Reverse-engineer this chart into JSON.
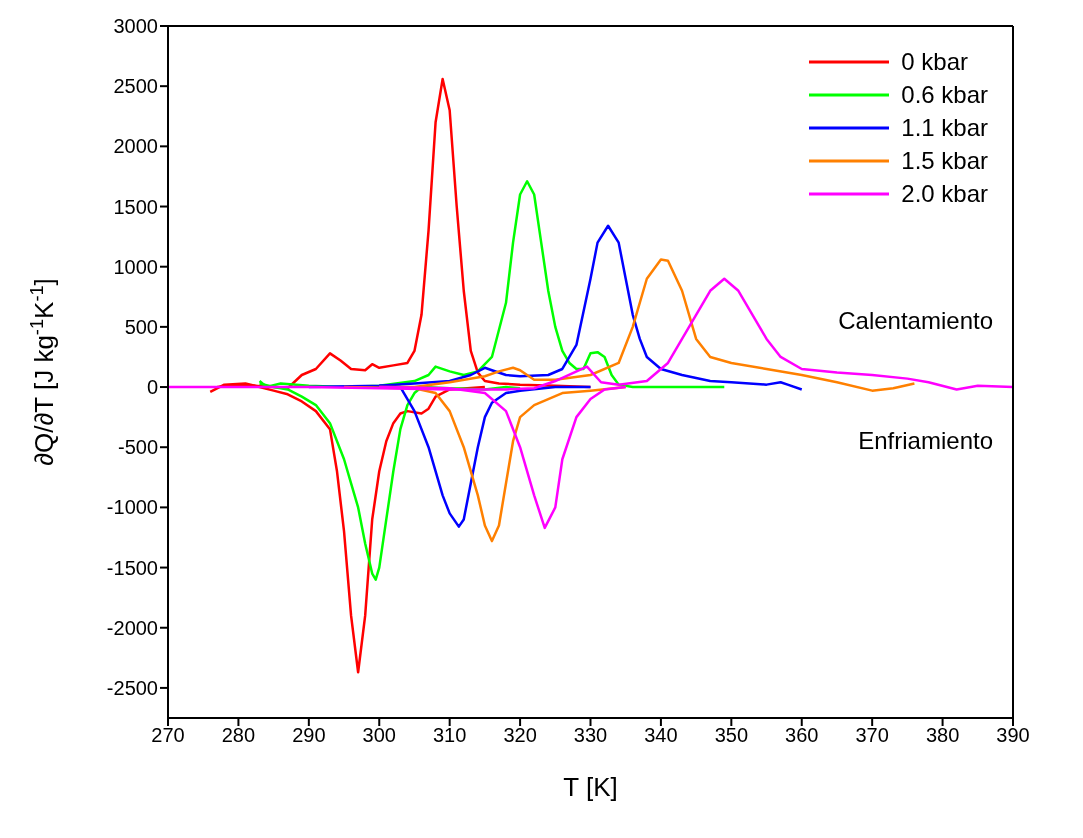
{
  "chart_data": {
    "type": "line",
    "xlabel": "T [K]",
    "ylabel": "∂Q/∂T [J kg$^{-1}$K$^{-1}$]",
    "xlim": [
      270,
      390
    ],
    "xticks": [
      270,
      280,
      290,
      300,
      310,
      320,
      330,
      340,
      350,
      360,
      370,
      380,
      390
    ],
    "ylim": [
      -2750,
      3000
    ],
    "yticks": [
      -2500,
      -2000,
      -1500,
      -1000,
      -500,
      0,
      500,
      1000,
      1500,
      2000,
      2500,
      3000
    ],
    "legend": "top right",
    "marker": "none",
    "line_style": "solid",
    "annotations": [
      "Calentamiento",
      "Enfriamiento"
    ],
    "series": [
      {
        "name": "0 kbar",
        "color": "#ff0000",
        "x": [
          277,
          280,
          285,
          287,
          289,
          291,
          293,
          294.5,
          296,
          298,
          299,
          300,
          302,
          304,
          305,
          306,
          307,
          308,
          309,
          310,
          311,
          312,
          313,
          314,
          315,
          317,
          320,
          325,
          330
        ],
        "values": [
          0,
          20,
          0,
          -10,
          100,
          150,
          280,
          220,
          150,
          140,
          190,
          160,
          180,
          200,
          300,
          600,
          1300,
          2200,
          2560,
          2300,
          1500,
          800,
          300,
          120,
          50,
          30,
          20,
          10,
          0
        ]
      },
      {
        "color": "#ff0000",
        "x": [
          276,
          278,
          281,
          283,
          285,
          287,
          289,
          291,
          293,
          294,
          295,
          296,
          297,
          298,
          299,
          300,
          301,
          302,
          303,
          304,
          306,
          307,
          308,
          310,
          315
        ],
        "values": [
          -40,
          20,
          30,
          0,
          -30,
          -60,
          -120,
          -200,
          -350,
          -700,
          -1200,
          -1900,
          -2370,
          -1900,
          -1100,
          -700,
          -450,
          -300,
          -220,
          -200,
          -220,
          -180,
          -80,
          -20,
          0
        ]
      },
      {
        "name": "0.6 kbar",
        "color": "#00ff00",
        "x": [
          283,
          284,
          286,
          290,
          295,
          300,
          305,
          307,
          308,
          310,
          312,
          314,
          316,
          318,
          319,
          320,
          321,
          322,
          323,
          324,
          325,
          326,
          327,
          328,
          329,
          330,
          331,
          332,
          333,
          334,
          336,
          345,
          349
        ],
        "values": [
          50,
          0,
          30,
          10,
          0,
          10,
          50,
          100,
          170,
          130,
          100,
          130,
          250,
          700,
          1200,
          1600,
          1710,
          1600,
          1200,
          800,
          500,
          300,
          200,
          150,
          150,
          280,
          290,
          250,
          100,
          20,
          0,
          0,
          0
        ]
      },
      {
        "color": "#00ff00",
        "x": [
          283,
          285,
          287,
          289,
          291,
          293,
          295,
          296,
          297,
          298,
          299,
          299.5,
          300,
          301,
          302,
          303,
          304,
          305,
          306,
          310,
          315,
          318,
          320
        ],
        "values": [
          30,
          0,
          -20,
          -80,
          -150,
          -300,
          -600,
          -800,
          -1000,
          -1300,
          -1550,
          -1600,
          -1500,
          -1100,
          -700,
          -350,
          -150,
          -50,
          0,
          -10,
          -20,
          0,
          -10
        ]
      },
      {
        "name": "1.1 kbar",
        "color": "#0000ff",
        "x": [
          290,
          300,
          305,
          310,
          313,
          315,
          316,
          318,
          320,
          324,
          326,
          328,
          330,
          331,
          332.5,
          334,
          335,
          336,
          337,
          338,
          340,
          343,
          347,
          350,
          355,
          357,
          358,
          360
        ],
        "values": [
          0,
          10,
          30,
          50,
          100,
          160,
          140,
          100,
          90,
          100,
          150,
          350,
          900,
          1200,
          1340,
          1200,
          900,
          600,
          400,
          250,
          150,
          100,
          50,
          40,
          20,
          40,
          20,
          -20
        ]
      },
      {
        "color": "#0000ff",
        "x": [
          300,
          303,
          305,
          307,
          309,
          310,
          311.3,
          312,
          313,
          314,
          315,
          316,
          318,
          320,
          325,
          330
        ],
        "values": [
          10,
          0,
          -200,
          -500,
          -900,
          -1050,
          -1160,
          -1100,
          -800,
          -500,
          -250,
          -130,
          -50,
          -30,
          0,
          0
        ]
      },
      {
        "name": "1.5 kbar",
        "color": "#ff8000",
        "x": [
          300,
          305,
          310,
          315,
          317,
          319,
          320,
          322,
          325,
          330,
          334,
          336,
          338,
          340,
          341,
          343,
          345,
          347,
          350,
          355,
          360,
          365,
          370,
          373,
          376
        ],
        "values": [
          0,
          0,
          40,
          90,
          130,
          160,
          140,
          60,
          60,
          100,
          200,
          500,
          900,
          1060,
          1050,
          800,
          400,
          250,
          200,
          150,
          100,
          40,
          -30,
          -10,
          30
        ]
      },
      {
        "color": "#ff8000",
        "x": [
          295,
          305,
          308,
          310,
          312,
          314,
          315,
          316,
          317,
          318,
          319,
          320,
          322,
          324,
          326,
          330,
          335
        ],
        "values": [
          0,
          -10,
          -50,
          -200,
          -500,
          -900,
          -1150,
          -1280,
          -1150,
          -800,
          -450,
          -250,
          -150,
          -100,
          -50,
          -30,
          0
        ]
      },
      {
        "name": "2.0 kbar",
        "color": "#ff00ff",
        "x": [
          270,
          290,
          300,
          310,
          318,
          322,
          325,
          329.5,
          331.5,
          334,
          338,
          341,
          344,
          347,
          349,
          351,
          353,
          355,
          357,
          360,
          365,
          370,
          375,
          378,
          382,
          385,
          390
        ],
        "values": [
          0,
          0,
          -10,
          -20,
          -20,
          -10,
          50,
          170,
          40,
          20,
          50,
          200,
          500,
          800,
          900,
          800,
          600,
          400,
          250,
          150,
          120,
          100,
          70,
          40,
          -20,
          10,
          0
        ]
      },
      {
        "color": "#ff00ff",
        "x": [
          300,
          310,
          315,
          318,
          320,
          322,
          323.5,
          325,
          326,
          328,
          330,
          332,
          335
        ],
        "values": [
          0,
          -10,
          -50,
          -200,
          -500,
          -900,
          -1170,
          -1000,
          -600,
          -250,
          -100,
          -20,
          0
        ]
      }
    ]
  }
}
